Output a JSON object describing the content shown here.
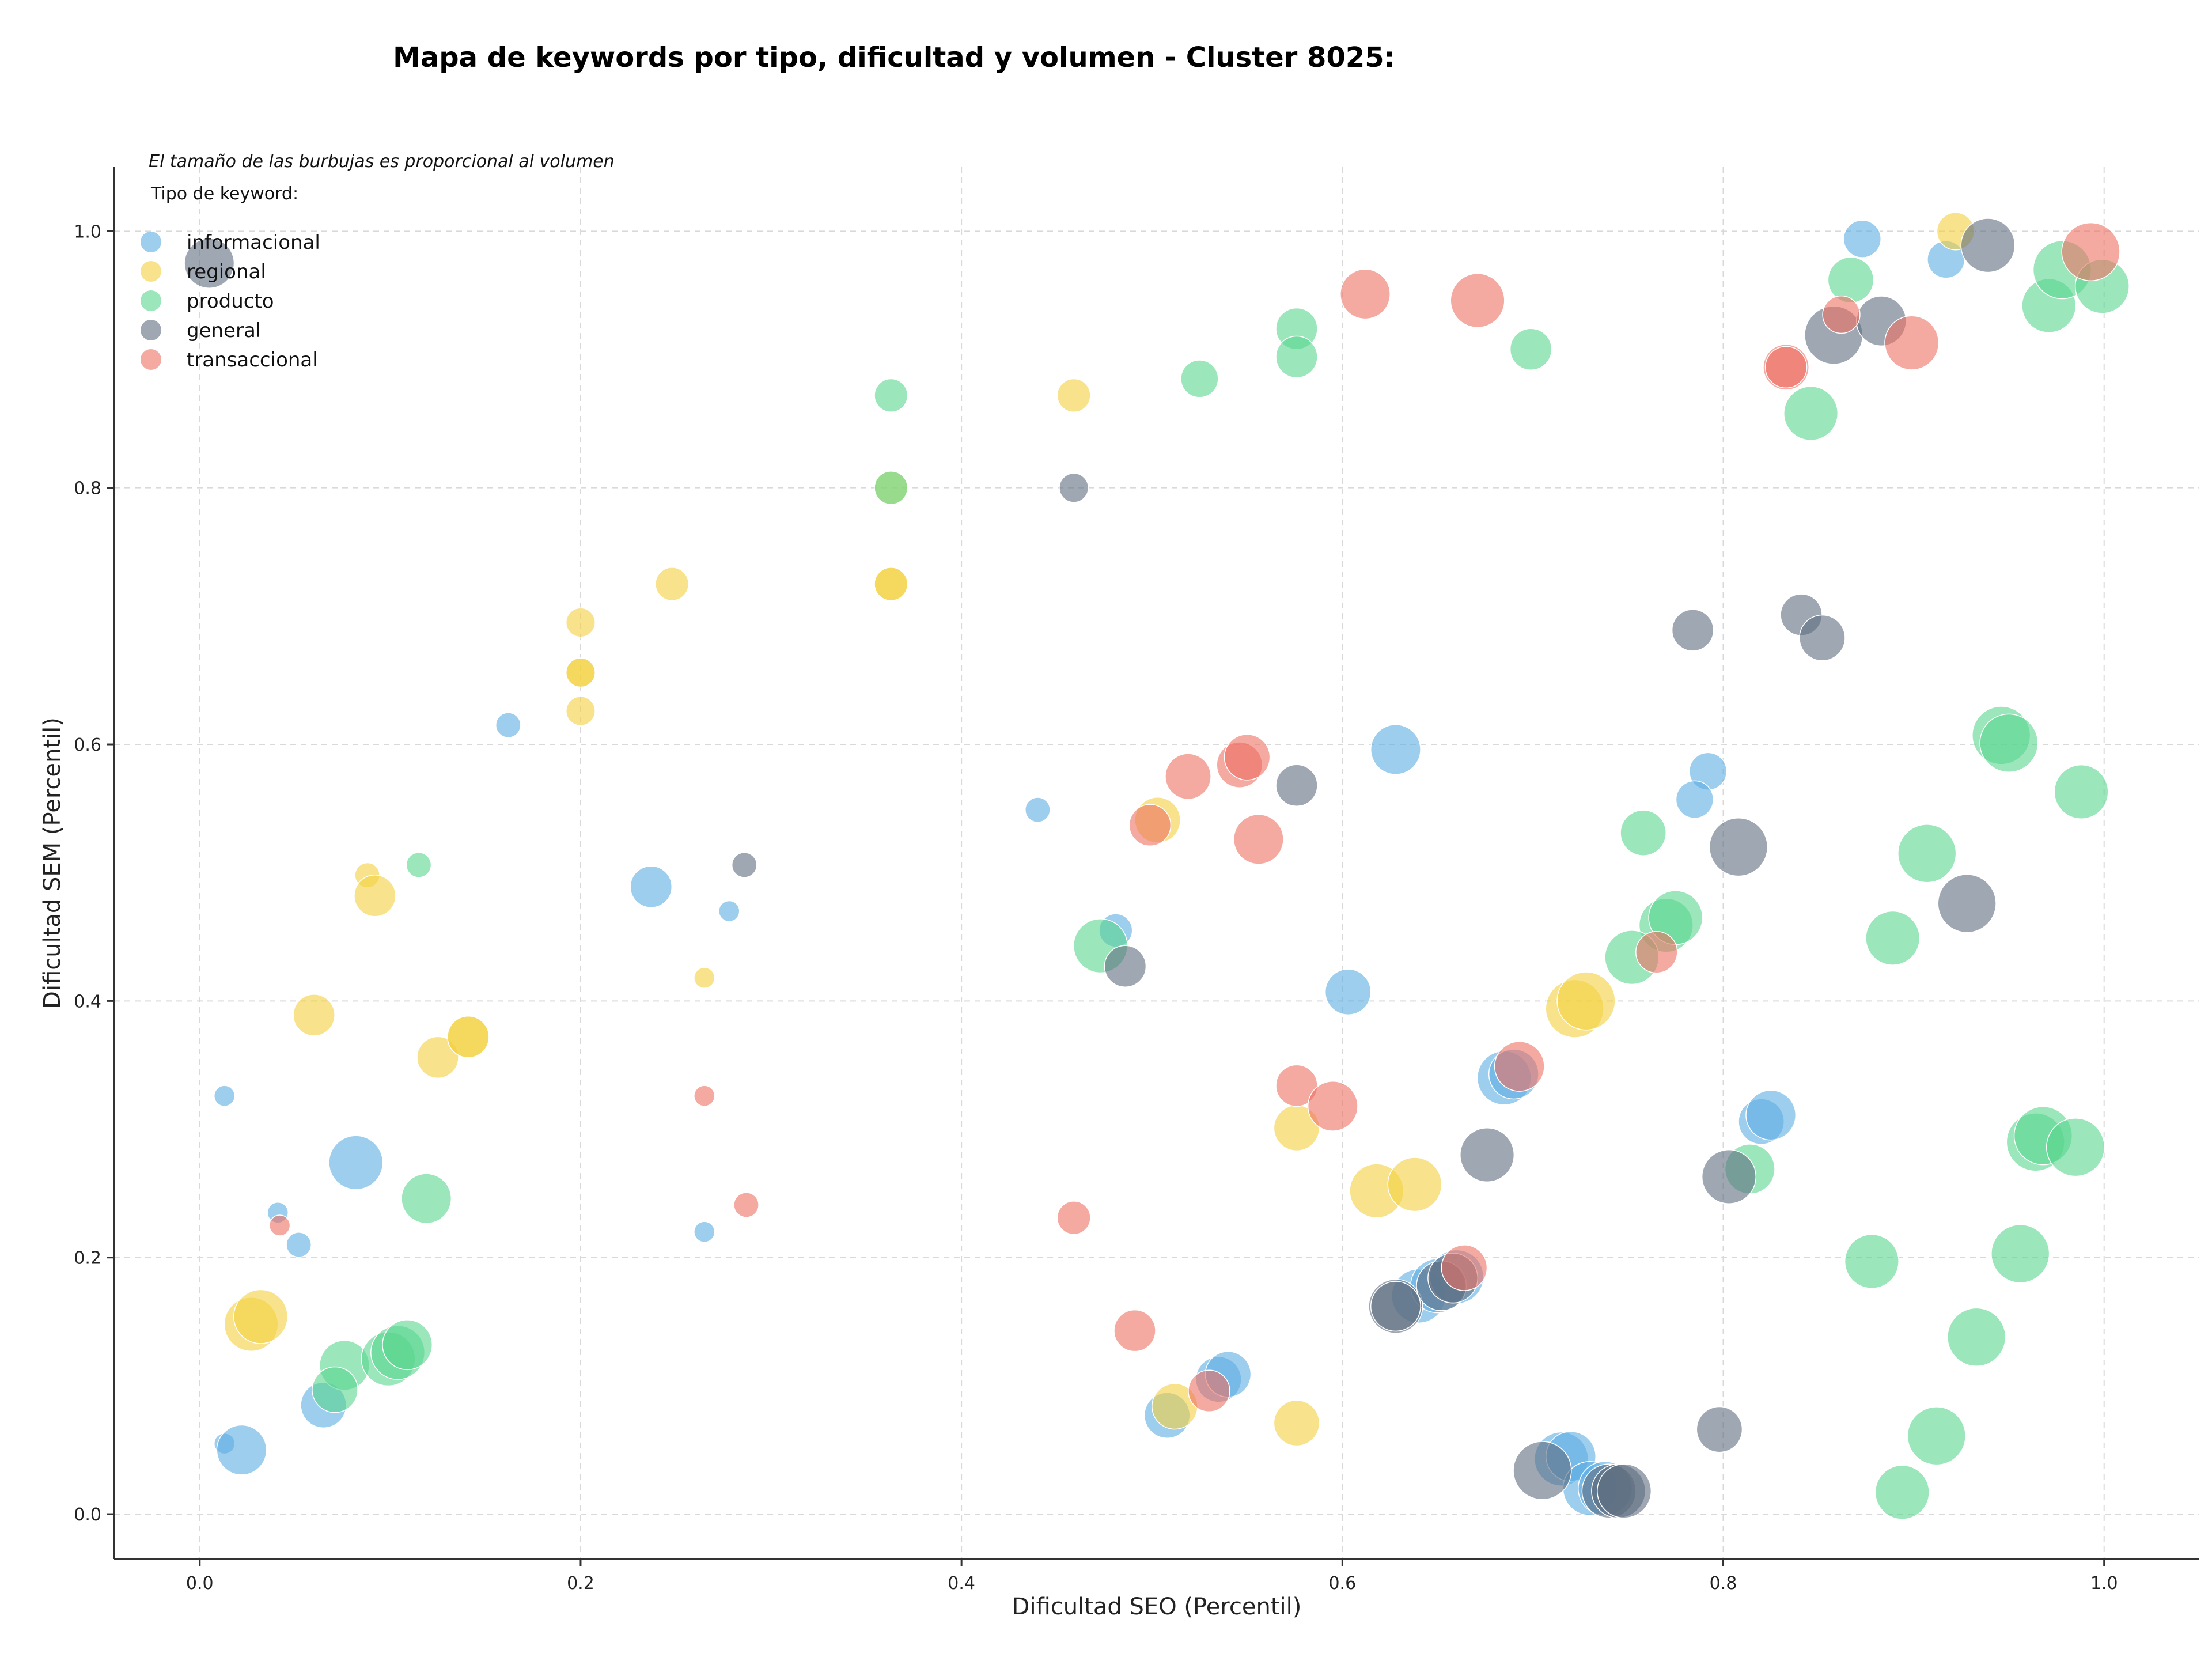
{
  "chart_data": {
    "type": "scatter",
    "title": "Mapa de keywords por tipo, dificultad y volumen - Cluster 8025:",
    "xlabel": "Dificultad SEO (Percentil)",
    "ylabel": "Dificultad SEM (Percentil)",
    "note": "El tamaño de las burbujas es proporcional al volumen",
    "legend_title": "Tipo de keyword:",
    "legend_position": "top-left",
    "grid": true,
    "xlim": [
      -0.045,
      1.05
    ],
    "ylim": [
      -0.035,
      1.05
    ],
    "xticks": [
      0.0,
      0.2,
      0.4,
      0.6,
      0.8,
      1.0
    ],
    "yticks": [
      0.0,
      0.2,
      0.4,
      0.6,
      0.8,
      1.0
    ],
    "xtick_labels": [
      "0.0",
      "0.2",
      "0.4",
      "0.6",
      "0.8",
      "1.0"
    ],
    "ytick_labels": [
      "0.0",
      "0.2",
      "0.4",
      "0.6",
      "0.8",
      "1.0"
    ],
    "series": [
      {
        "name": "informacional",
        "color": "#5dade2",
        "points": [
          [
            0.873,
            0.994,
            9
          ],
          [
            0.917,
            0.978,
            9
          ],
          [
            0.162,
            0.615,
            6
          ],
          [
            0.628,
            0.596,
            12
          ],
          [
            0.792,
            0.579,
            9
          ],
          [
            0.785,
            0.557,
            9
          ],
          [
            0.237,
            0.489,
            10
          ],
          [
            0.278,
            0.47,
            5
          ],
          [
            0.44,
            0.549,
            6
          ],
          [
            0.481,
            0.455,
            8
          ],
          [
            0.603,
            0.407,
            11
          ],
          [
            0.013,
            0.326,
            5
          ],
          [
            0.082,
            0.274,
            13
          ],
          [
            0.685,
            0.34,
            13
          ],
          [
            0.69,
            0.343,
            12
          ],
          [
            0.82,
            0.306,
            11
          ],
          [
            0.825,
            0.311,
            12
          ],
          [
            0.041,
            0.235,
            5
          ],
          [
            0.052,
            0.21,
            6
          ],
          [
            0.265,
            0.22,
            5
          ],
          [
            0.64,
            0.17,
            13
          ],
          [
            0.65,
            0.178,
            13
          ],
          [
            0.66,
            0.185,
            13
          ],
          [
            0.013,
            0.055,
            5
          ],
          [
            0.022,
            0.05,
            12
          ],
          [
            0.065,
            0.085,
            11
          ],
          [
            0.508,
            0.077,
            11
          ],
          [
            0.535,
            0.105,
            11
          ],
          [
            0.54,
            0.109,
            11
          ],
          [
            0.715,
            0.043,
            13
          ],
          [
            0.72,
            0.045,
            12
          ],
          [
            0.73,
            0.02,
            13
          ],
          [
            0.738,
            0.02,
            13
          ]
        ]
      },
      {
        "name": "regional",
        "color": "#f4d03f",
        "points": [
          [
            0.922,
            1.0,
            9
          ],
          [
            0.459,
            0.872,
            8
          ],
          [
            0.248,
            0.725,
            8
          ],
          [
            0.363,
            0.725,
            8
          ],
          [
            0.363,
            0.725,
            8
          ],
          [
            0.2,
            0.695,
            7
          ],
          [
            0.2,
            0.656,
            7
          ],
          [
            0.2,
            0.656,
            7
          ],
          [
            0.2,
            0.626,
            7
          ],
          [
            0.088,
            0.498,
            6
          ],
          [
            0.092,
            0.482,
            10
          ],
          [
            0.06,
            0.389,
            10
          ],
          [
            0.125,
            0.356,
            10
          ],
          [
            0.141,
            0.372,
            10
          ],
          [
            0.141,
            0.372,
            10
          ],
          [
            0.265,
            0.418,
            5
          ],
          [
            0.503,
            0.541,
            11
          ],
          [
            0.576,
            0.301,
            11
          ],
          [
            0.618,
            0.252,
            13
          ],
          [
            0.638,
            0.257,
            13
          ],
          [
            0.722,
            0.394,
            14
          ],
          [
            0.728,
            0.4,
            14
          ],
          [
            0.027,
            0.148,
            13
          ],
          [
            0.032,
            0.154,
            13
          ],
          [
            0.512,
            0.084,
            11
          ],
          [
            0.576,
            0.071,
            11
          ],
          [
            0.363,
            0.8,
            8
          ]
        ]
      },
      {
        "name": "producto",
        "color": "#58d68d",
        "points": [
          [
            0.867,
            0.962,
            11
          ],
          [
            0.971,
            0.942,
            13
          ],
          [
            0.978,
            0.97,
            14
          ],
          [
            0.999,
            0.957,
            13
          ],
          [
            0.846,
            0.858,
            13
          ],
          [
            0.363,
            0.872,
            8
          ],
          [
            0.525,
            0.885,
            9
          ],
          [
            0.576,
            0.924,
            10
          ],
          [
            0.576,
            0.902,
            10
          ],
          [
            0.699,
            0.908,
            10
          ],
          [
            0.363,
            0.8,
            8
          ],
          [
            0.946,
            0.607,
            14
          ],
          [
            0.95,
            0.601,
            14
          ],
          [
            0.988,
            0.563,
            13
          ],
          [
            0.758,
            0.531,
            11
          ],
          [
            0.907,
            0.515,
            14
          ],
          [
            0.115,
            0.506,
            6
          ],
          [
            0.473,
            0.443,
            13
          ],
          [
            0.889,
            0.449,
            13
          ],
          [
            0.77,
            0.459,
            13
          ],
          [
            0.775,
            0.465,
            13
          ],
          [
            0.752,
            0.434,
            13
          ],
          [
            0.119,
            0.246,
            12
          ],
          [
            0.814,
            0.269,
            12
          ],
          [
            0.964,
            0.29,
            14
          ],
          [
            0.968,
            0.295,
            14
          ],
          [
            0.985,
            0.286,
            14
          ],
          [
            0.878,
            0.197,
            13
          ],
          [
            0.956,
            0.203,
            14
          ],
          [
            0.933,
            0.138,
            14
          ],
          [
            0.076,
            0.116,
            12
          ],
          [
            0.071,
            0.097,
            11
          ],
          [
            0.099,
            0.121,
            13
          ],
          [
            0.104,
            0.126,
            13
          ],
          [
            0.109,
            0.132,
            12
          ],
          [
            0.912,
            0.061,
            14
          ],
          [
            0.894,
            0.017,
            13
          ]
        ]
      },
      {
        "name": "general",
        "color": "#5d6d7e",
        "points": [
          [
            0.939,
            0.989,
            13
          ],
          [
            0.005,
            0.975,
            12
          ],
          [
            0.858,
            0.919,
            14
          ],
          [
            0.883,
            0.93,
            12
          ],
          [
            0.459,
            0.8,
            7
          ],
          [
            0.784,
            0.689,
            10
          ],
          [
            0.841,
            0.701,
            10
          ],
          [
            0.852,
            0.683,
            11
          ],
          [
            0.576,
            0.568,
            10
          ],
          [
            0.286,
            0.506,
            6
          ],
          [
            0.808,
            0.52,
            14
          ],
          [
            0.928,
            0.476,
            14
          ],
          [
            0.486,
            0.427,
            10
          ],
          [
            0.676,
            0.28,
            13
          ],
          [
            0.803,
            0.263,
            13
          ],
          [
            0.628,
            0.162,
            13
          ],
          [
            0.628,
            0.162,
            12
          ],
          [
            0.652,
            0.178,
            12
          ],
          [
            0.658,
            0.184,
            12
          ],
          [
            0.798,
            0.066,
            11
          ],
          [
            0.705,
            0.034,
            14
          ],
          [
            0.74,
            0.018,
            13
          ],
          [
            0.745,
            0.018,
            13
          ],
          [
            0.748,
            0.018,
            13
          ]
        ]
      },
      {
        "name": "transaccional",
        "color": "#ec7063",
        "points": [
          [
            0.993,
            0.984,
            14
          ],
          [
            0.612,
            0.951,
            12
          ],
          [
            0.671,
            0.946,
            13
          ],
          [
            0.899,
            0.913,
            13
          ],
          [
            0.862,
            0.935,
            9
          ],
          [
            0.833,
            0.894,
            11
          ],
          [
            0.833,
            0.894,
            10
          ],
          [
            0.519,
            0.575,
            11
          ],
          [
            0.546,
            0.584,
            11
          ],
          [
            0.55,
            0.59,
            11
          ],
          [
            0.499,
            0.537,
            10
          ],
          [
            0.556,
            0.526,
            12
          ],
          [
            0.765,
            0.438,
            10
          ],
          [
            0.693,
            0.349,
            12
          ],
          [
            0.576,
            0.334,
            10
          ],
          [
            0.595,
            0.318,
            12
          ],
          [
            0.265,
            0.326,
            5
          ],
          [
            0.042,
            0.225,
            5
          ],
          [
            0.287,
            0.241,
            6
          ],
          [
            0.459,
            0.231,
            8
          ],
          [
            0.664,
            0.192,
            11
          ],
          [
            0.491,
            0.143,
            10
          ],
          [
            0.53,
            0.096,
            10
          ]
        ]
      }
    ]
  }
}
